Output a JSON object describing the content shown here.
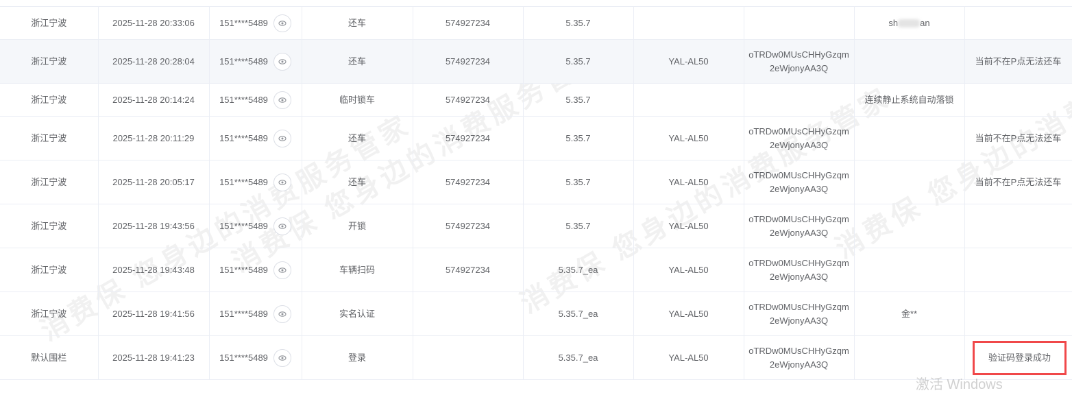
{
  "colors": {
    "highlight_border": "#f0484a",
    "row_alt": "#f5f7fa",
    "border": "#ebeef5"
  },
  "rows": [
    {
      "region": "浙江宁波",
      "time": "2025-11-28 20:33:06",
      "phone": "151****5489",
      "action": "还车",
      "id": "574927234",
      "version": "5.35.7",
      "device": "",
      "openid": "",
      "extra_prefix": "sh",
      "extra_suffix": "an",
      "note": ""
    },
    {
      "region": "浙江宁波",
      "time": "2025-11-28 20:28:04",
      "phone": "151****5489",
      "action": "还车",
      "id": "574927234",
      "version": "5.35.7",
      "device": "YAL-AL50",
      "openid": "oTRDw0MUsCHHyGzqm2eWjonyAA3Q",
      "extra": "",
      "note": "当前不在P点无法还车"
    },
    {
      "region": "浙江宁波",
      "time": "2025-11-28 20:14:24",
      "phone": "151****5489",
      "action": "临时锁车",
      "id": "574927234",
      "version": "5.35.7",
      "device": "",
      "openid": "",
      "extra": "连续静止系统自动落锁",
      "note": ""
    },
    {
      "region": "浙江宁波",
      "time": "2025-11-28 20:11:29",
      "phone": "151****5489",
      "action": "还车",
      "id": "574927234",
      "version": "5.35.7",
      "device": "YAL-AL50",
      "openid": "oTRDw0MUsCHHyGzqm2eWjonyAA3Q",
      "extra": "",
      "note": "当前不在P点无法还车"
    },
    {
      "region": "浙江宁波",
      "time": "2025-11-28 20:05:17",
      "phone": "151****5489",
      "action": "还车",
      "id": "574927234",
      "version": "5.35.7",
      "device": "YAL-AL50",
      "openid": "oTRDw0MUsCHHyGzqm2eWjonyAA3Q",
      "extra": "",
      "note": "当前不在P点无法还车"
    },
    {
      "region": "浙江宁波",
      "time": "2025-11-28 19:43:56",
      "phone": "151****5489",
      "action": "开锁",
      "id": "574927234",
      "version": "5.35.7",
      "device": "YAL-AL50",
      "openid": "oTRDw0MUsCHHyGzqm2eWjonyAA3Q",
      "extra": "",
      "note": ""
    },
    {
      "region": "浙江宁波",
      "time": "2025-11-28 19:43:48",
      "phone": "151****5489",
      "action": "车辆扫码",
      "id": "574927234",
      "version": "5.35.7_ea",
      "device": "YAL-AL50",
      "openid": "oTRDw0MUsCHHyGzqm2eWjonyAA3Q",
      "extra": "",
      "note": ""
    },
    {
      "region": "浙江宁波",
      "time": "2025-11-28 19:41:56",
      "phone": "151****5489",
      "action": "实名认证",
      "id": "",
      "version": "5.35.7_ea",
      "device": "YAL-AL50",
      "openid": "oTRDw0MUsCHHyGzqm2eWjonyAA3Q",
      "extra": "金**",
      "note": ""
    },
    {
      "region": "默认围栏",
      "time": "2025-11-28 19:41:23",
      "phone": "151****5489",
      "action": "登录",
      "id": "",
      "version": "5.35.7_ea",
      "device": "YAL-AL50",
      "openid": "oTRDw0MUsCHHyGzqm2eWjonyAA3Q",
      "extra": "",
      "note": "验证码登录成功"
    }
  ],
  "watermark": "消费保 您身边的消费服务管家",
  "os_overlay": "激活 Windows"
}
